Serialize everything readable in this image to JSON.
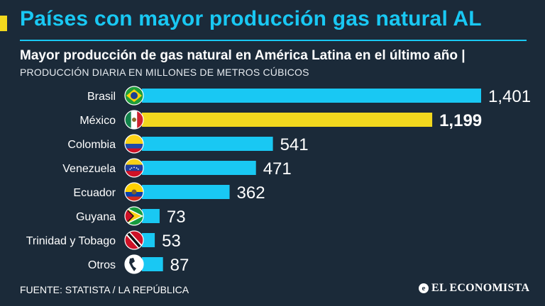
{
  "header": {
    "title": "Países con mayor producción gas natural AL"
  },
  "subtitle": "Mayor producción de gas natural en América Latina en el último año |",
  "unit_note": "PRODUCCIÓN DIARIA EN MILLONES DE METROS CÚBICOS",
  "source": "FUENTE: STATISTA / LA REPÚBLICA",
  "brand": {
    "name": "EL ECONOMISTA",
    "icon": "e-logo-icon"
  },
  "colors": {
    "background": "#1b2a39",
    "bar": "#19c8f3",
    "highlight_bar": "#f2d81e",
    "title": "#19c8f3",
    "accent": "#f2d81e"
  },
  "chart_data": {
    "type": "bar",
    "orientation": "horizontal",
    "title": "Mayor producción de gas natural en América Latina en el último año |",
    "subtitle": "PRODUCCIÓN DIARIA EN MILLONES DE METROS CÚBICOS",
    "categories": [
      "Brasil",
      "México",
      "Colombia",
      "Venezuela",
      "Ecuador",
      "Guyana",
      "Trinidad y Tobago",
      "Otros"
    ],
    "values": [
      1401,
      1199,
      541,
      471,
      362,
      73,
      53,
      87
    ],
    "labels": [
      "1,401",
      "1,199",
      "541",
      "471",
      "362",
      "73",
      "53",
      "87"
    ],
    "highlight": "México",
    "flags": [
      "brazil-flag-icon",
      "mexico-flag-icon",
      "colombia-flag-icon",
      "venezuela-flag-icon",
      "ecuador-flag-icon",
      "guyana-flag-icon",
      "trinidad-tobago-flag-icon",
      "americas-globe-icon"
    ],
    "xlim": [
      0,
      1401
    ],
    "grid": false,
    "legend": "none"
  }
}
